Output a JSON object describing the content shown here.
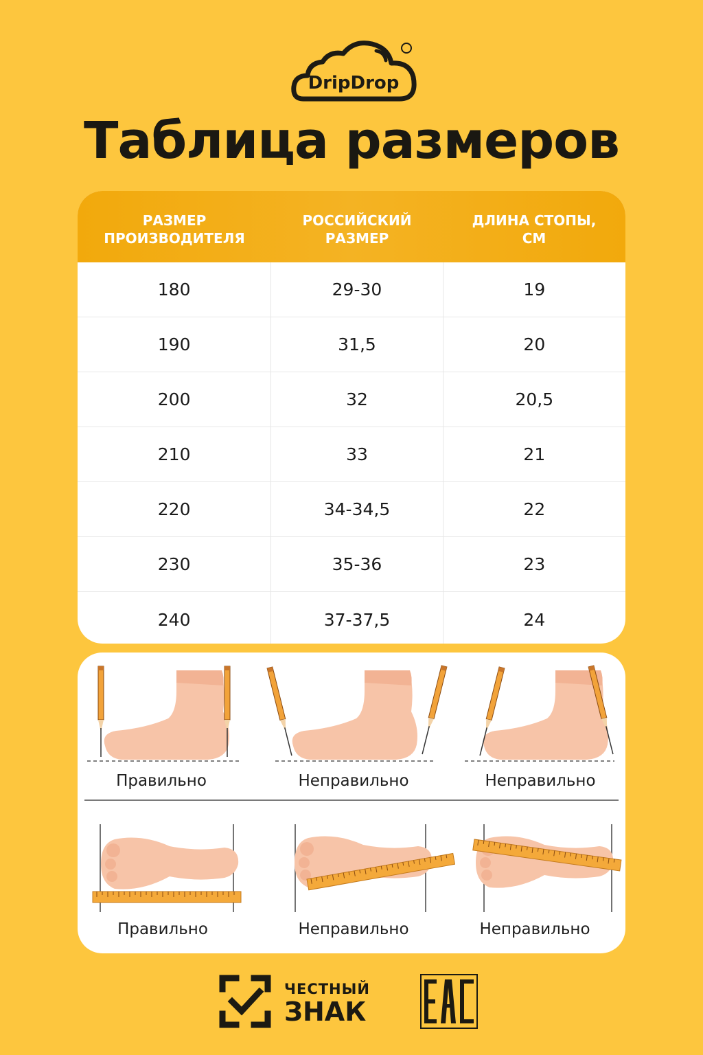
{
  "logo": {
    "text": "DripDrop",
    "registered": "®"
  },
  "title": "Таблица размеров",
  "table": {
    "headers": [
      "РАЗМЕР\nПРОИЗВОДИТЕЛЯ",
      "РОССИЙСКИЙ\nРАЗМЕР",
      "ДЛИНА СТОПЫ,\nСМ"
    ],
    "rows": [
      [
        "180",
        "29-30",
        "19"
      ],
      [
        "190",
        "31,5",
        "20"
      ],
      [
        "200",
        "32",
        "20,5"
      ],
      [
        "210",
        "33",
        "21"
      ],
      [
        "220",
        "34-34,5",
        "22"
      ],
      [
        "230",
        "35-36",
        "23"
      ],
      [
        "240",
        "37-37,5",
        "24"
      ]
    ]
  },
  "guide": {
    "top": [
      "Правильно",
      "Неправильно",
      "Неправильно"
    ],
    "bottom": [
      "Правильно",
      "Неправильно",
      "Неправильно"
    ]
  },
  "footer": {
    "line1": "ЧЕСТНЫЙ",
    "line2": "ЗНАК"
  },
  "colors": {
    "background": "#FDC63E",
    "header": "#F2A90C",
    "ruler": "#F4A93A",
    "foot": "#F7C4A8"
  }
}
